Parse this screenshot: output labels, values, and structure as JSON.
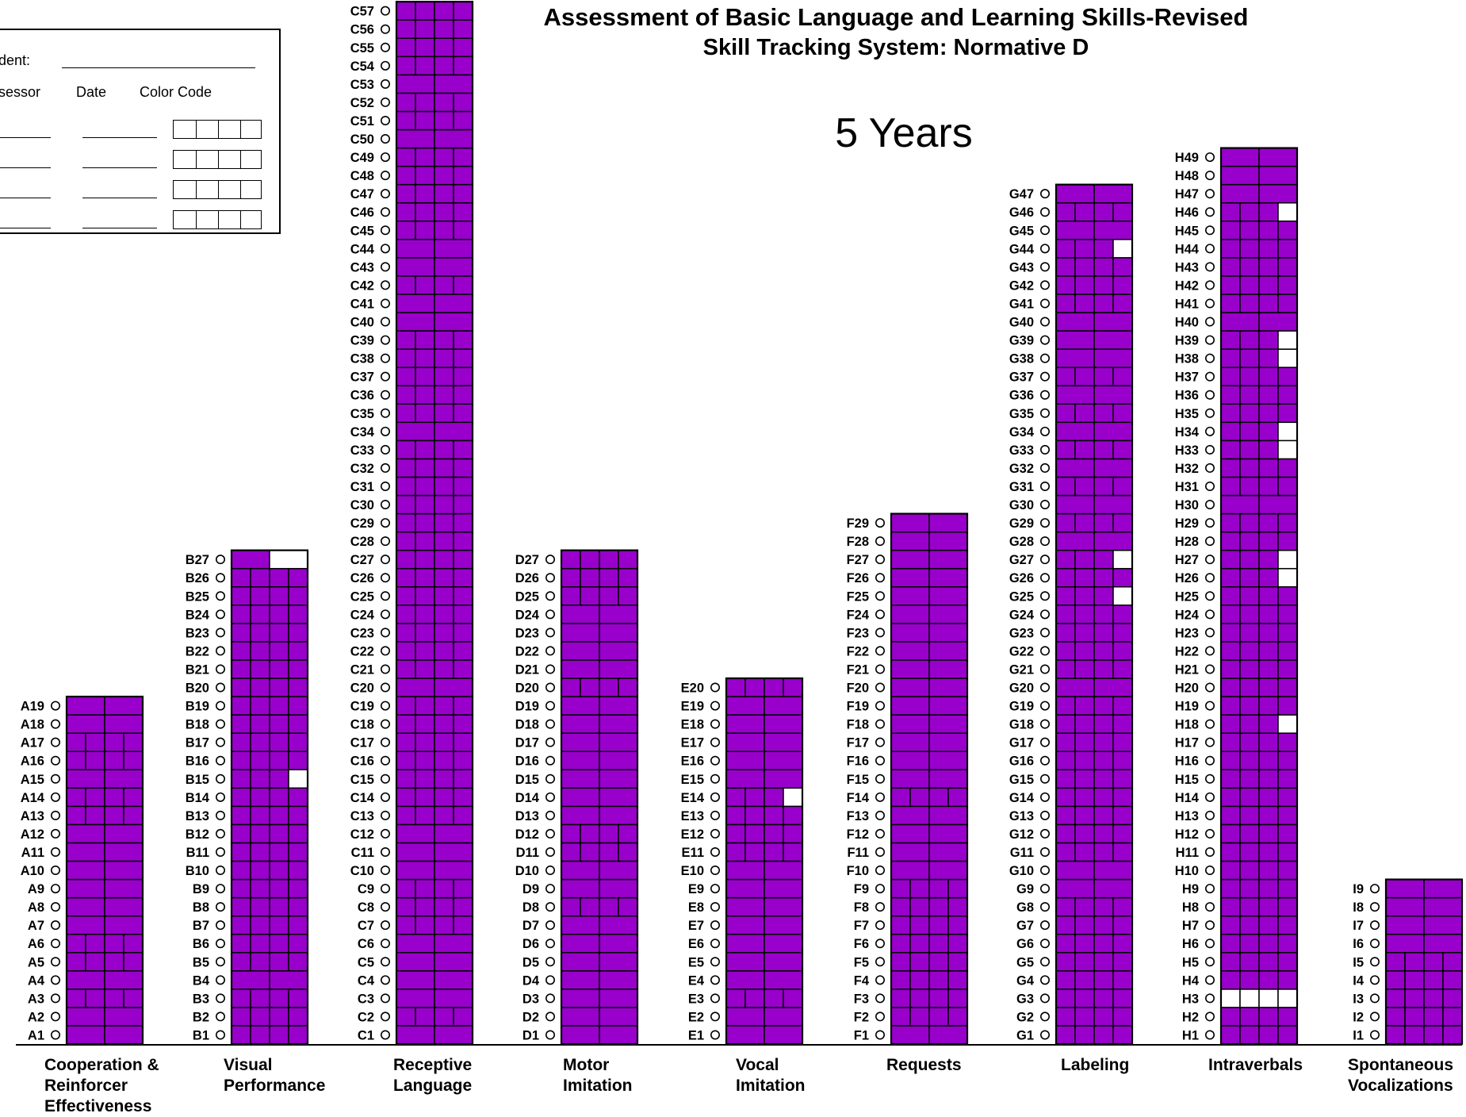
{
  "title": "Assessment of Basic Language and Learning Skills-Revised",
  "subtitle": "Skill Tracking System: Normative D",
  "age_label": "5 Years",
  "legend_box": {
    "student_label": "dent:",
    "assessor_label": "sessor",
    "date_label": "Date",
    "color_code_label": "Color Code",
    "rows": 4
  },
  "colors": {
    "filled": "#9900CC",
    "empty": "#FFFFFF",
    "grid": "#000000"
  },
  "chart_data": {
    "type": "table",
    "description_units": "each skill row has 2 or 4 cells; value = cells shaded",
    "sections": [
      {
        "code": "A",
        "label": [
          "Cooperation &",
          "Reinforcer",
          "Effectiveness"
        ],
        "count": 19,
        "quad_rows": [
          3,
          5,
          6,
          13,
          14,
          16,
          17
        ],
        "shaded": {}
      },
      {
        "code": "B",
        "label": [
          "Visual",
          "Performance"
        ],
        "count": 27,
        "quad_rows": [
          1,
          2,
          3,
          5,
          6,
          7,
          8,
          9,
          10,
          11,
          12,
          13,
          14,
          15,
          16,
          17,
          18,
          19,
          20,
          21,
          22,
          23,
          24,
          25,
          26
        ],
        "shaded": {
          "15": 3,
          "27": 1
        }
      },
      {
        "code": "C",
        "label": [
          "Receptive",
          "Language"
        ],
        "count": 57,
        "quad_rows": [
          2,
          7,
          8,
          9,
          13,
          14,
          15,
          16,
          17,
          18,
          19,
          21,
          22,
          23,
          24,
          25,
          26,
          27,
          28,
          29,
          30,
          31,
          32,
          33,
          35,
          36,
          37,
          38,
          39,
          42,
          45,
          46,
          47,
          48,
          49,
          51,
          52,
          54,
          55,
          56,
          57
        ],
        "shaded": {}
      },
      {
        "code": "D",
        "label": [
          "Motor",
          "Imitation"
        ],
        "count": 27,
        "quad_rows": [
          8,
          11,
          12,
          20,
          25,
          26,
          27
        ],
        "shaded": {}
      },
      {
        "code": "E",
        "label": [
          "Vocal",
          "Imitation"
        ],
        "count": 20,
        "quad_rows": [
          3,
          11,
          12,
          13,
          14,
          20
        ],
        "shaded": {
          "14": 3
        }
      },
      {
        "code": "F",
        "label": [
          "Requests"
        ],
        "count": 29,
        "quad_rows": [
          2,
          3,
          4,
          5,
          6,
          7,
          8,
          9,
          14
        ],
        "shaded": {}
      },
      {
        "code": "G",
        "label": [
          "Labeling"
        ],
        "count": 47,
        "quad_rows": [
          1,
          2,
          3,
          4,
          5,
          6,
          7,
          8,
          11,
          12,
          13,
          14,
          15,
          16,
          17,
          18,
          19,
          21,
          22,
          23,
          24,
          25,
          26,
          27,
          29,
          31,
          33,
          35,
          37,
          41,
          42,
          43,
          44,
          46
        ],
        "shaded": {
          "25": 3,
          "27": 3,
          "44": 3
        }
      },
      {
        "code": "H",
        "label": [
          "Intraverbals"
        ],
        "count": 49,
        "quad_rows": [
          1,
          2,
          3,
          4,
          5,
          6,
          7,
          8,
          9,
          10,
          11,
          12,
          13,
          14,
          15,
          16,
          17,
          18,
          19,
          20,
          21,
          22,
          23,
          24,
          25,
          26,
          27,
          28,
          29,
          31,
          32,
          33,
          34,
          35,
          36,
          37,
          38,
          39,
          41,
          42,
          43,
          44,
          45,
          46
        ],
        "shaded": {
          "3": 0,
          "18": 3,
          "26": 3,
          "27": 3,
          "33": 3,
          "34": 3,
          "38": 3,
          "39": 3,
          "46": 3
        }
      },
      {
        "code": "I",
        "label": [
          "Spontaneous",
          "Vocalizations"
        ],
        "count": 9,
        "quad_rows": [
          1,
          2,
          3,
          4,
          5
        ],
        "shaded": {}
      }
    ]
  }
}
